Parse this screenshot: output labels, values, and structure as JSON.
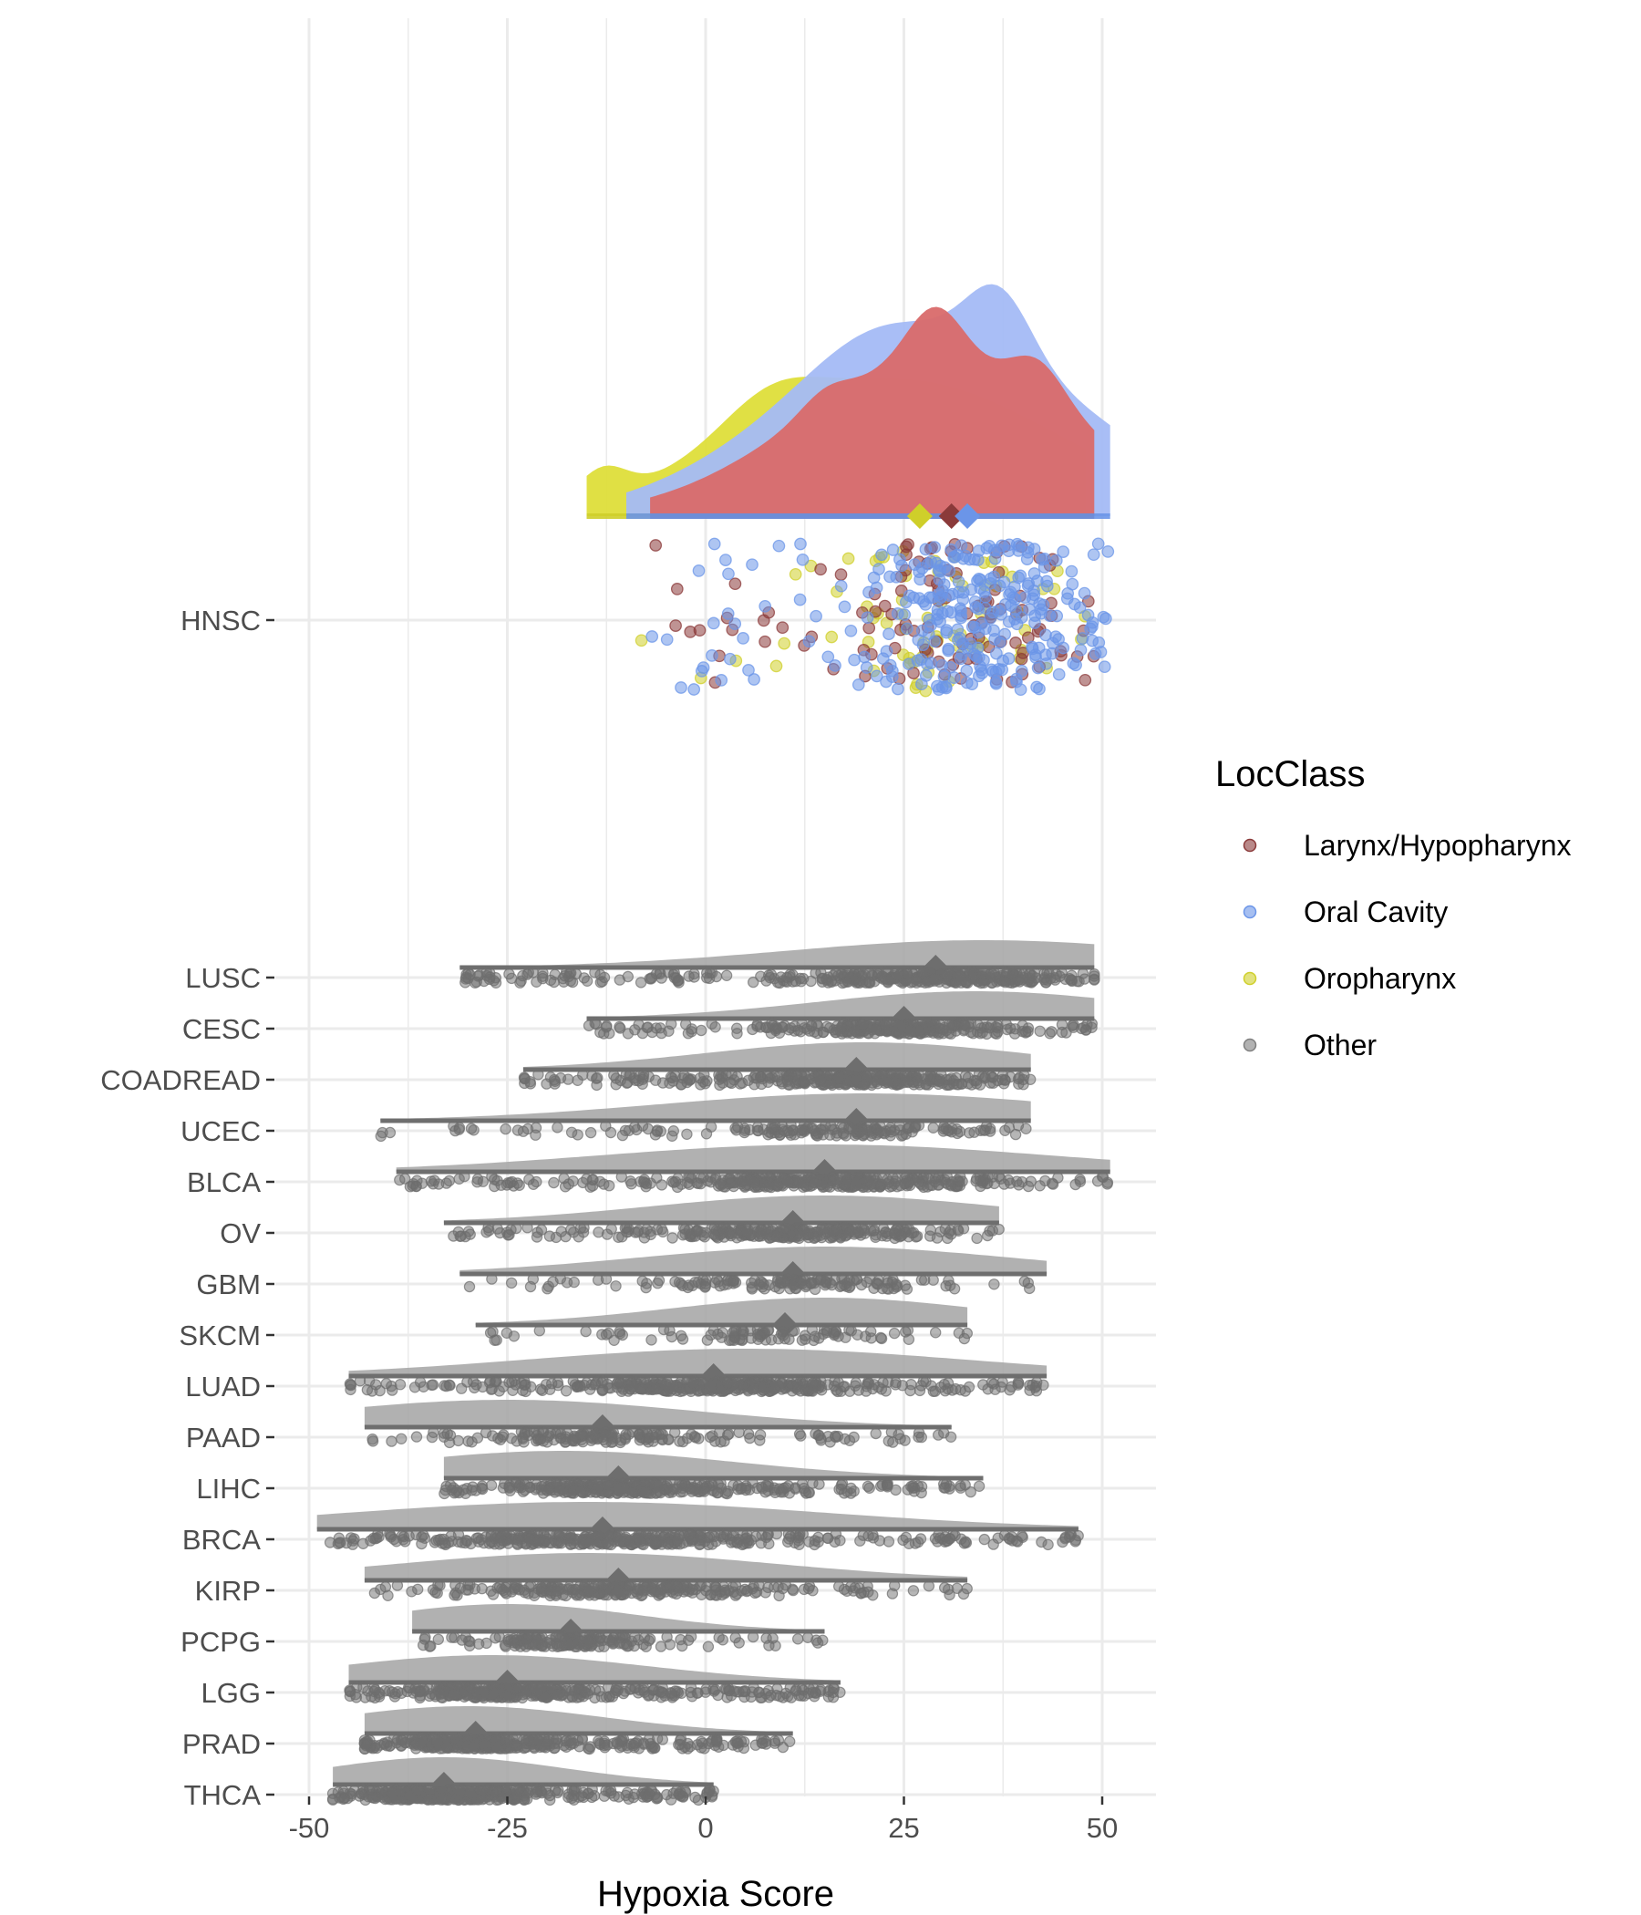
{
  "chart_data": {
    "type": "raincloud",
    "xlabel": "Hypoxia Score",
    "xlim": [
      -51,
      57
    ],
    "x_ticks": [
      -50,
      -25,
      0,
      25,
      50
    ],
    "x_tick_labels": [
      "-50",
      "-25",
      "0",
      "25",
      "50"
    ],
    "grid": true,
    "legend": {
      "title": "LocClass",
      "position": "right",
      "entries": [
        {
          "label": "Larynx/Hypopharynx",
          "color": "#8b3a3a"
        },
        {
          "label": "Oral Cavity",
          "color": "#6b95e8"
        },
        {
          "label": "Oropharynx",
          "color": "#cfcf2a"
        },
        {
          "label": "Other",
          "color": "#7f7f7f"
        }
      ]
    },
    "hnsc": {
      "category": "HNSC",
      "groups": [
        {
          "name": "Oropharynx",
          "min": -15,
          "max": 48,
          "mean": 27,
          "color": "#cfcf2a",
          "n": 70
        },
        {
          "name": "Larynx/Hypopharynx",
          "min": -7,
          "max": 49,
          "mean": 31,
          "color": "#8b3a3a",
          "n": 110
        },
        {
          "name": "Oral Cavity",
          "min": -10,
          "max": 51,
          "mean": 33,
          "color": "#6b95e8",
          "n": 300
        }
      ]
    },
    "categories": [
      "LUSC",
      "CESC",
      "COADREAD",
      "UCEC",
      "BLCA",
      "OV",
      "GBM",
      "SKCM",
      "LUAD",
      "PAAD",
      "LIHC",
      "BRCA",
      "KIRP",
      "PCPG",
      "LGG",
      "PRAD",
      "THCA"
    ],
    "series": [
      {
        "name": "LUSC",
        "min": -31,
        "max": 49,
        "mean": 29,
        "mode": 35,
        "n": 500
      },
      {
        "name": "CESC",
        "min": -15,
        "max": 49,
        "mean": 25,
        "mode": 34,
        "n": 300
      },
      {
        "name": "COADREAD",
        "min": -23,
        "max": 41,
        "mean": 19,
        "mode": 20,
        "n": 380
      },
      {
        "name": "UCEC",
        "min": -41,
        "max": 41,
        "mean": 19,
        "mode": 20,
        "n": 180
      },
      {
        "name": "BLCA",
        "min": -39,
        "max": 51,
        "mean": 15,
        "mode": 15,
        "n": 400
      },
      {
        "name": "OV",
        "min": -33,
        "max": 37,
        "mean": 11,
        "mode": 15,
        "n": 300
      },
      {
        "name": "GBM",
        "min": -31,
        "max": 43,
        "mean": 11,
        "mode": 15,
        "n": 150
      },
      {
        "name": "SKCM",
        "min": -29,
        "max": 33,
        "mean": 10,
        "mode": 15,
        "n": 100
      },
      {
        "name": "LUAD",
        "min": -45,
        "max": 43,
        "mean": 1,
        "mode": 5,
        "n": 500
      },
      {
        "name": "PAAD",
        "min": -43,
        "max": 31,
        "mean": -13,
        "mode": -25,
        "n": 180
      },
      {
        "name": "LIHC",
        "min": -33,
        "max": 35,
        "mean": -11,
        "mode": -18,
        "n": 370
      },
      {
        "name": "BRCA",
        "min": -49,
        "max": 47,
        "mean": -13,
        "mode": -15,
        "n": 1000
      },
      {
        "name": "KIRP",
        "min": -43,
        "max": 33,
        "mean": -11,
        "mode": -15,
        "n": 290
      },
      {
        "name": "PCPG",
        "min": -37,
        "max": 15,
        "mean": -17,
        "mode": -25,
        "n": 180
      },
      {
        "name": "LGG",
        "min": -45,
        "max": 17,
        "mean": -25,
        "mode": -27,
        "n": 510
      },
      {
        "name": "PRAD",
        "min": -43,
        "max": 11,
        "mean": -29,
        "mode": -30,
        "n": 490
      },
      {
        "name": "THCA",
        "min": -47,
        "max": 1,
        "mean": -33,
        "mode": -33,
        "n": 500
      }
    ]
  }
}
